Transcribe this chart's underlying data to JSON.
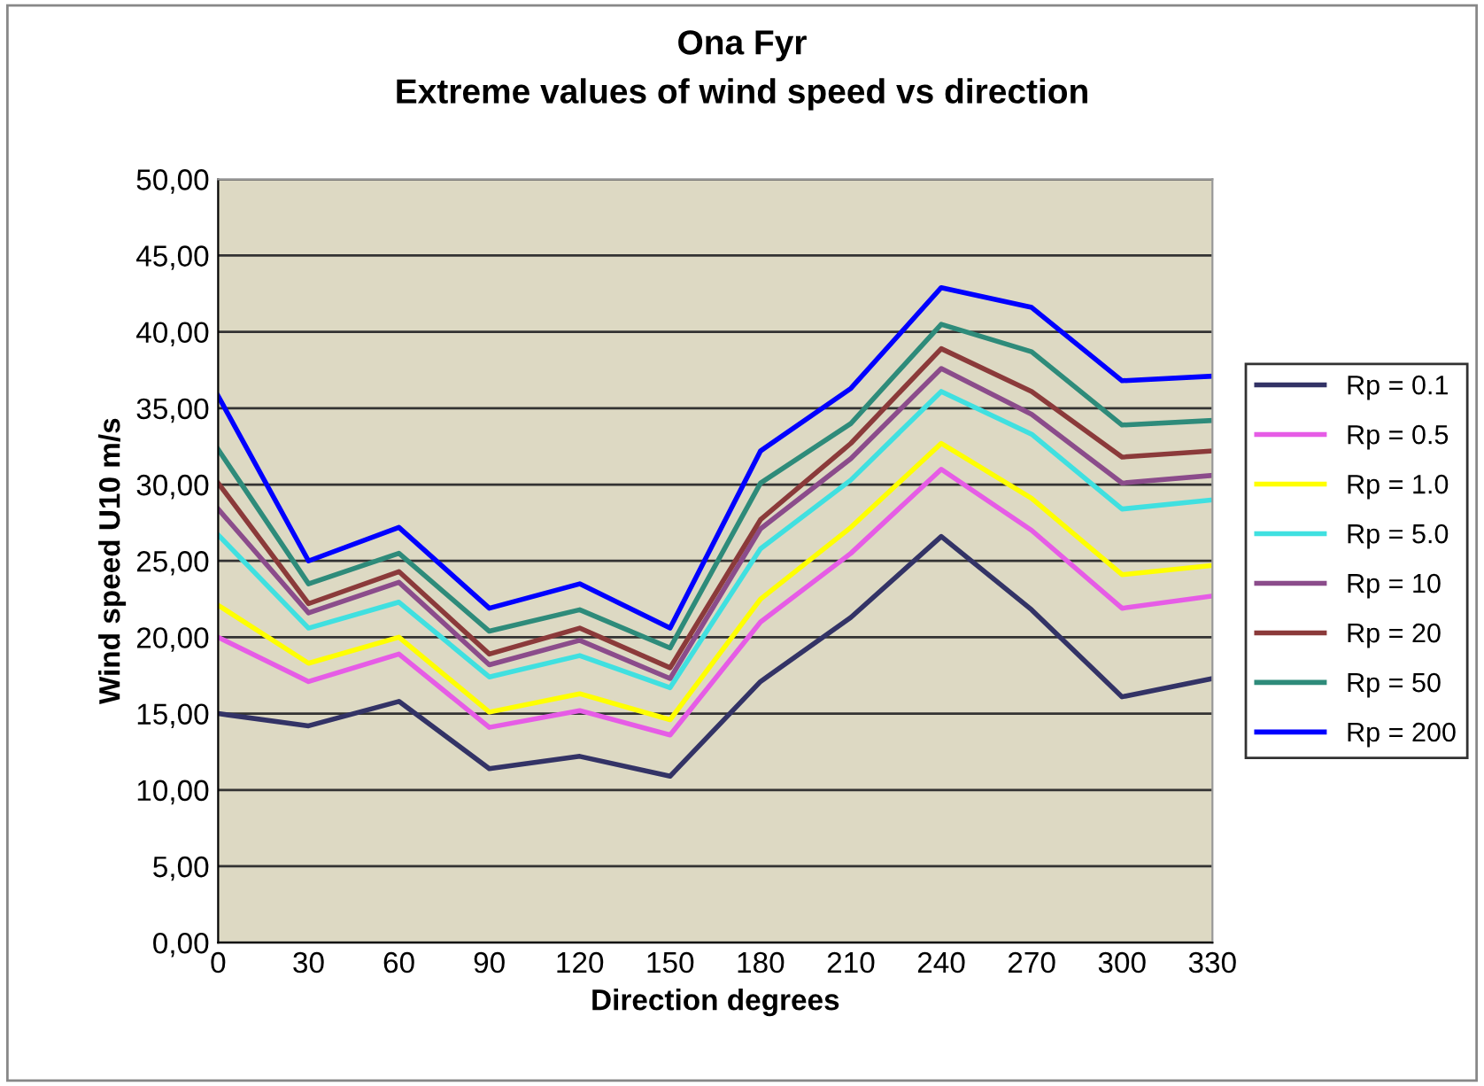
{
  "chart_data": {
    "type": "line",
    "title": "Ona Fyr",
    "subtitle": "Extreme values of wind speed vs direction",
    "xlabel": "Direction degrees",
    "ylabel": "Wind speed U10 m/s",
    "categories": [
      "0",
      "30",
      "60",
      "90",
      "120",
      "150",
      "180",
      "210",
      "240",
      "270",
      "300",
      "330"
    ],
    "series": [
      {
        "name": "Rp = 0.1",
        "color": "#333366",
        "values": [
          15.0,
          14.2,
          15.8,
          11.4,
          12.2,
          10.9,
          17.1,
          21.3,
          26.6,
          21.8,
          16.1,
          17.3
        ]
      },
      {
        "name": "Rp = 0.5",
        "color": "#e65ce6",
        "values": [
          20.0,
          17.1,
          18.9,
          14.1,
          15.2,
          13.6,
          21.0,
          25.5,
          31.0,
          27.0,
          21.9,
          22.7
        ]
      },
      {
        "name": "Rp = 1.0",
        "color": "#ffff00",
        "values": [
          22.1,
          18.3,
          20.0,
          15.1,
          16.3,
          14.6,
          22.5,
          27.2,
          32.7,
          29.1,
          24.1,
          24.7
        ]
      },
      {
        "name": "Rp = 5.0",
        "color": "#40e0e0",
        "values": [
          26.7,
          20.6,
          22.3,
          17.4,
          18.8,
          16.7,
          25.8,
          30.3,
          36.1,
          33.3,
          28.4,
          29.0
        ]
      },
      {
        "name": "Rp = 10",
        "color": "#8b4c8b",
        "values": [
          28.4,
          21.6,
          23.6,
          18.2,
          19.8,
          17.3,
          27.1,
          31.7,
          37.6,
          34.6,
          30.1,
          30.6
        ]
      },
      {
        "name": "Rp = 20",
        "color": "#8b3a3a",
        "values": [
          30.1,
          22.2,
          24.3,
          18.9,
          20.6,
          18.0,
          27.7,
          32.7,
          38.9,
          36.1,
          31.8,
          32.2
        ]
      },
      {
        "name": "Rp = 50",
        "color": "#2e8b7a",
        "values": [
          32.3,
          23.5,
          25.5,
          20.4,
          21.8,
          19.3,
          30.1,
          34.0,
          40.5,
          38.7,
          33.9,
          34.2
        ]
      },
      {
        "name": "Rp = 200",
        "color": "#0000ff",
        "values": [
          35.8,
          25.0,
          27.2,
          21.9,
          23.5,
          20.6,
          32.2,
          36.3,
          42.9,
          41.6,
          36.8,
          37.1
        ]
      }
    ],
    "ylim": [
      0,
      50
    ],
    "yticks": [
      {
        "value": 0,
        "label": "0,00"
      },
      {
        "value": 5,
        "label": "5,00"
      },
      {
        "value": 10,
        "label": "10,00"
      },
      {
        "value": 15,
        "label": "15,00"
      },
      {
        "value": 20,
        "label": "20,00"
      },
      {
        "value": 25,
        "label": "25,00"
      },
      {
        "value": 30,
        "label": "30,00"
      },
      {
        "value": 35,
        "label": "35,00"
      },
      {
        "value": 40,
        "label": "40,00"
      },
      {
        "value": 45,
        "label": "45,00"
      },
      {
        "value": 50,
        "label": "50,00"
      }
    ],
    "grid": "y",
    "legend": "right",
    "marker": "none",
    "line_style": "solid"
  }
}
